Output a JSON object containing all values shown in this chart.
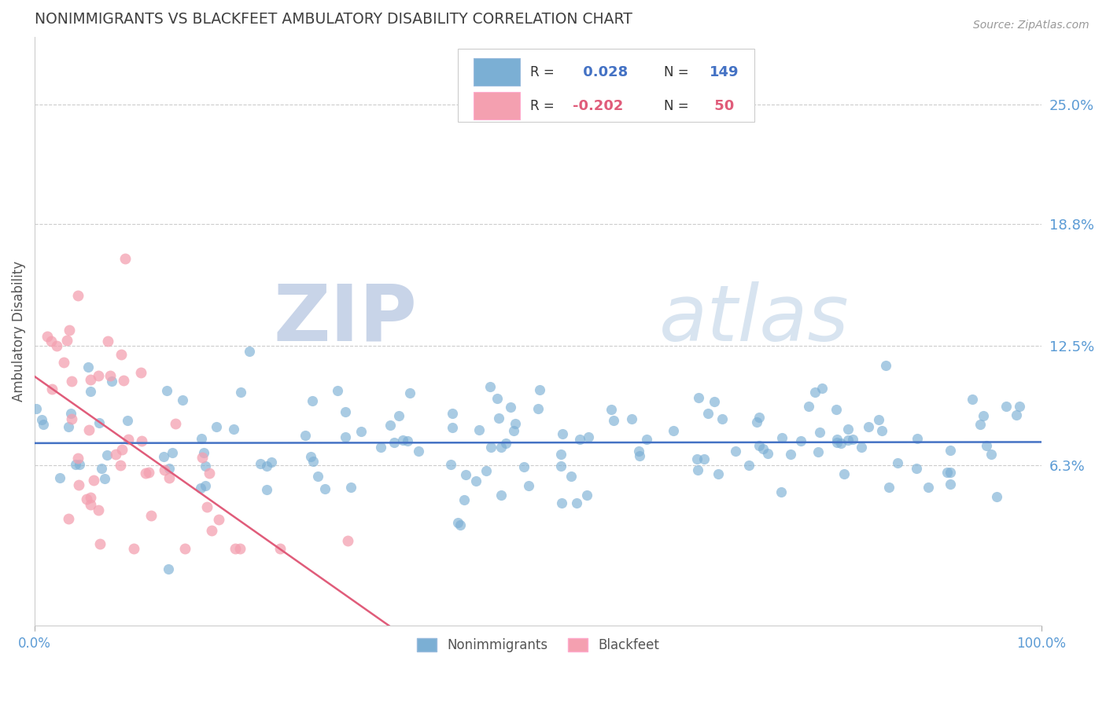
{
  "title": "NONIMMIGRANTS VS BLACKFEET AMBULATORY DISABILITY CORRELATION CHART",
  "source": "Source: ZipAtlas.com",
  "ylabel": "Ambulatory Disability",
  "xlim": [
    0.0,
    1.0
  ],
  "ylim": [
    -0.02,
    0.285
  ],
  "yticks": [
    0.063,
    0.125,
    0.188,
    0.25
  ],
  "ytick_labels": [
    "6.3%",
    "12.5%",
    "18.8%",
    "25.0%"
  ],
  "xtick_labels": [
    "0.0%",
    "100.0%"
  ],
  "r1": 0.028,
  "r2": -0.202,
  "n1": 149,
  "n2": 50,
  "series1_color": "#7bafd4",
  "series2_color": "#f4a0b0",
  "line1_color": "#4472c4",
  "line2_color": "#e05c7a",
  "background_color": "#ffffff",
  "grid_color": "#cccccc",
  "title_color": "#404040",
  "axis_label_color": "#555555",
  "tick_color": "#5b9bd5",
  "watermark_text": "ZIPatlas",
  "watermark_color": "#dde5f0",
  "seed1": 7,
  "seed2": 42
}
